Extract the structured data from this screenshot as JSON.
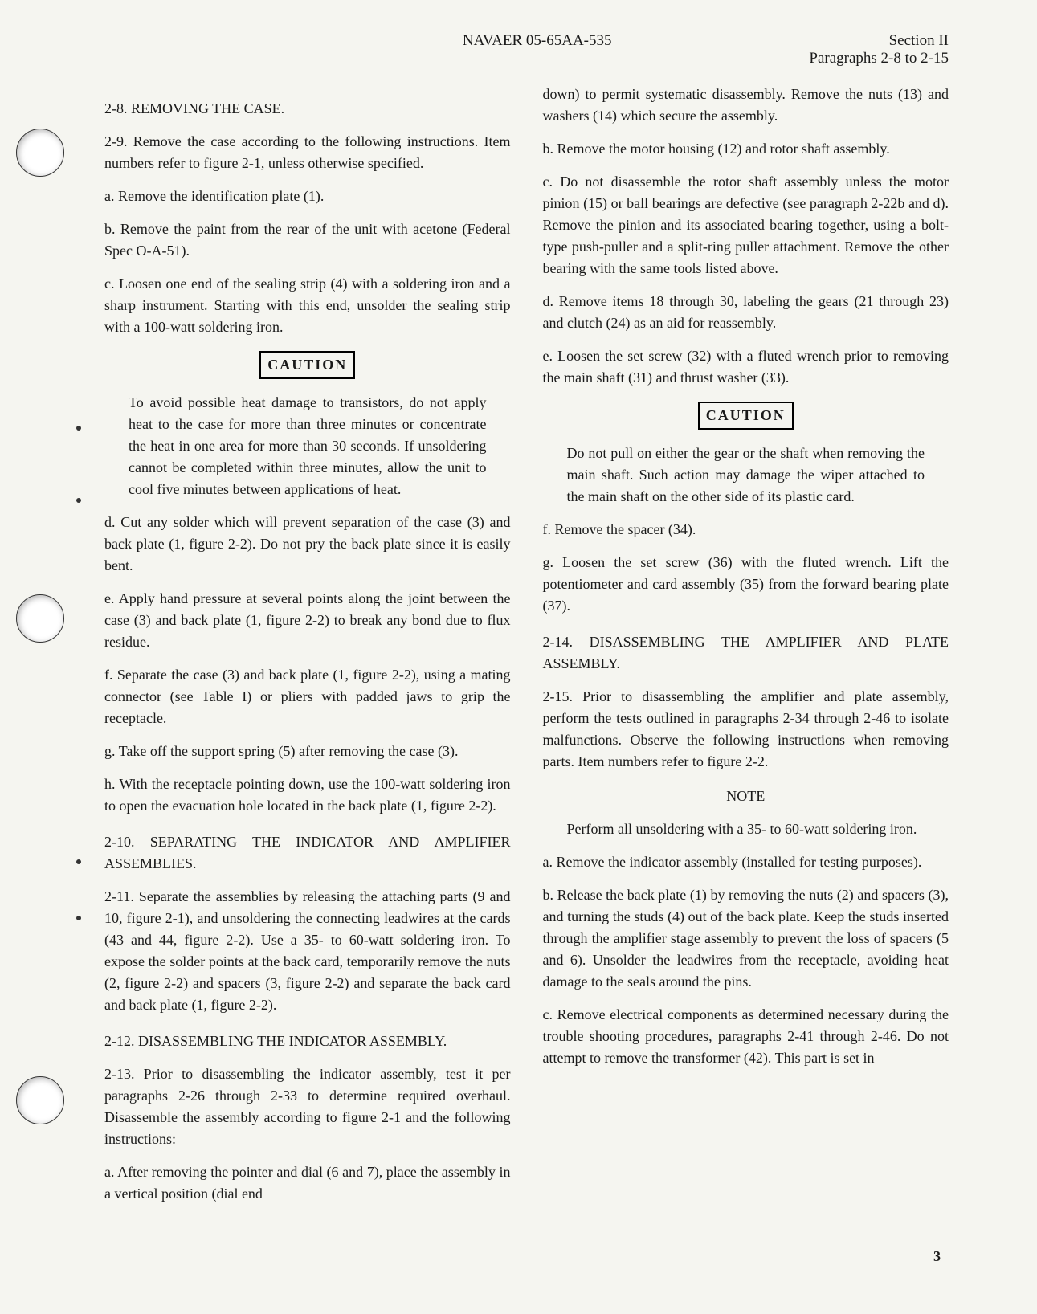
{
  "header": {
    "doc_number": "NAVAER 05-65AA-535",
    "section": "Section II",
    "para_range": "Paragraphs 2-8 to 2-15"
  },
  "col1": {
    "s28_title": "2-8. REMOVING THE CASE.",
    "s29": "2-9. Remove the case according to the following instructions. Item numbers refer to figure 2-1, unless otherwise specified.",
    "s29a": "a. Remove the identification plate (1).",
    "s29b": "b. Remove the paint from the rear of the unit with acetone (Federal Spec O-A-51).",
    "s29c": "c. Loosen one end of the sealing strip (4) with a soldering iron and a sharp instrument. Starting with this end, unsolder the sealing strip with a 100-watt soldering iron.",
    "caution1_label": "CAUTION",
    "caution1_text": "To avoid possible heat damage to transistors, do not apply heat to the case for more than three minutes or concentrate the heat in one area for more than 30 seconds. If unsoldering cannot be completed within three minutes, allow the unit to cool five minutes between applications of heat.",
    "s29d": "d. Cut any solder which will prevent separation of the case (3) and back plate (1, figure 2-2). Do not pry the back plate since it is easily bent.",
    "s29e": "e. Apply hand pressure at several points along the joint between the case (3) and back plate (1, figure 2-2) to break any bond due to flux residue.",
    "s29f": "f. Separate the case (3) and back plate (1, figure 2-2), using a mating connector (see Table I) or pliers with padded jaws to grip the receptacle.",
    "s29g": "g. Take off the support spring (5) after removing the case (3).",
    "s29h": "h. With the receptacle pointing down, use the 100-watt soldering iron to open the evacuation hole located in the back plate (1, figure 2-2).",
    "s210_title": "2-10. SEPARATING THE INDICATOR AND AMPLIFIER ASSEMBLIES.",
    "s211": "2-11. Separate the assemblies by releasing the attaching parts (9 and 10, figure 2-1), and unsoldering the connecting leadwires at the cards (43 and 44, figure 2-2). Use a 35- to 60-watt soldering iron. To expose the solder points at the back card, temporarily remove the nuts (2, figure 2-2) and spacers (3, figure 2-2) and separate the back card and back plate (1, figure 2-2).",
    "s212_title": "2-12. DISASSEMBLING THE INDICATOR ASSEMBLY.",
    "s213": "2-13. Prior to disassembling the indicator assembly, test it per paragraphs 2-26 through 2-33 to determine required overhaul. Disassemble the assembly according to figure 2-1 and the following instructions:",
    "s213a": "a. After removing the pointer and dial (6 and 7), place the assembly in a vertical position (dial end"
  },
  "col2": {
    "cont": "down) to permit systematic disassembly. Remove the nuts (13) and washers (14) which secure the assembly.",
    "s213b": "b. Remove the motor housing (12) and rotor shaft assembly.",
    "s213c": "c. Do not disassemble the rotor shaft assembly unless the motor pinion (15) or ball bearings are defective (see paragraph 2-22b and d). Remove the pinion and its associated bearing together, using a bolt-type push-puller and a split-ring puller attachment. Remove the other bearing with the same tools listed above.",
    "s213d": "d. Remove items 18 through 30, labeling the gears (21 through 23) and clutch (24) as an aid for reassembly.",
    "s213e": "e. Loosen the set screw (32) with a fluted wrench prior to removing the main shaft (31) and thrust washer (33).",
    "caution2_label": "CAUTION",
    "caution2_text": "Do not pull on either the gear or the shaft when removing the main shaft. Such action may damage the wiper attached to the main shaft on the other side of its plastic card.",
    "s213f": "f. Remove the spacer (34).",
    "s213g": "g. Loosen the set screw (36) with the fluted wrench. Lift the potentiometer and card assembly (35) from the forward bearing plate (37).",
    "s214_title": "2-14. DISASSEMBLING THE AMPLIFIER AND PLATE ASSEMBLY.",
    "s215": "2-15. Prior to disassembling the amplifier and plate assembly, perform the tests outlined in paragraphs 2-34 through 2-46 to isolate malfunctions. Observe the following instructions when removing parts. Item numbers refer to figure 2-2.",
    "note_label": "NOTE",
    "note_text": "Perform all unsoldering with a 35- to 60-watt soldering iron.",
    "s215a": "a. Remove the indicator assembly (installed for testing purposes).",
    "s215b": "b. Release the back plate (1) by removing the nuts (2) and spacers (3), and turning the studs (4) out of the back plate. Keep the studs inserted through the amplifier stage assembly to prevent the loss of spacers (5 and 6). Unsolder the leadwires from the receptacle, avoiding heat damage to the seals around the pins.",
    "s215c": "c. Remove electrical components as determined necessary during the trouble shooting procedures, paragraphs 2-41 through 2-46. Do not attempt to remove the transformer (42). This part is set in"
  },
  "page_number": "3"
}
